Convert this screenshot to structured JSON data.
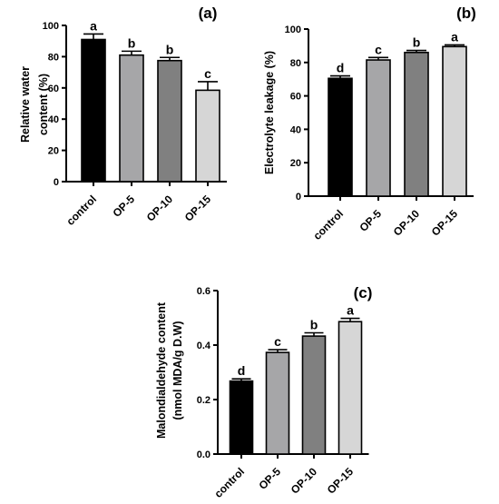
{
  "chart_data": [
    {
      "type": "bar",
      "panel_label": "(a)",
      "categories": [
        "control",
        "OP-5",
        "OP-10",
        "OP-15"
      ],
      "values": [
        91,
        81,
        77.5,
        58.5
      ],
      "errors": [
        3.5,
        2.5,
        2,
        5.5
      ],
      "significance": [
        "a",
        "b",
        "b",
        "c"
      ],
      "colors": [
        "#000000",
        "#a6a6a8",
        "#808080",
        "#d6d6d6"
      ],
      "ylabel_lines": [
        "Relative water",
        "content (%)"
      ],
      "ylim": [
        0,
        100
      ],
      "yticks": [
        "0",
        "20",
        "40",
        "60",
        "80",
        "100"
      ],
      "grid": false
    },
    {
      "type": "bar",
      "panel_label": "(b)",
      "categories": [
        "control",
        "OP-5",
        "OP-10",
        "OP-15"
      ],
      "values": [
        70.5,
        81.5,
        86,
        89.5
      ],
      "errors": [
        1.5,
        1.5,
        1.2,
        1
      ],
      "significance": [
        "d",
        "c",
        "b",
        "a"
      ],
      "colors": [
        "#000000",
        "#a6a6a8",
        "#808080",
        "#d6d6d6"
      ],
      "ylabel_lines": [
        "Electrolyte leakage (%)"
      ],
      "ylim": [
        0,
        100
      ],
      "yticks": [
        "0",
        "20",
        "40",
        "60",
        "80",
        "100"
      ],
      "grid": false
    },
    {
      "type": "bar",
      "panel_label": "(c)",
      "categories": [
        "control",
        "OP-5",
        "OP-10",
        "OP-15"
      ],
      "values": [
        0.268,
        0.373,
        0.433,
        0.486
      ],
      "errors": [
        0.008,
        0.01,
        0.012,
        0.012
      ],
      "significance": [
        "d",
        "c",
        "b",
        "a"
      ],
      "colors": [
        "#000000",
        "#a6a6a8",
        "#808080",
        "#d6d6d6"
      ],
      "ylabel_lines": [
        "Malondialdehyde content",
        "(nmol MDA/g D.W)"
      ],
      "ylim": [
        0,
        0.6
      ],
      "yticks": [
        "0.0",
        "0.2",
        "0.4",
        "0.6"
      ],
      "grid": false
    }
  ]
}
